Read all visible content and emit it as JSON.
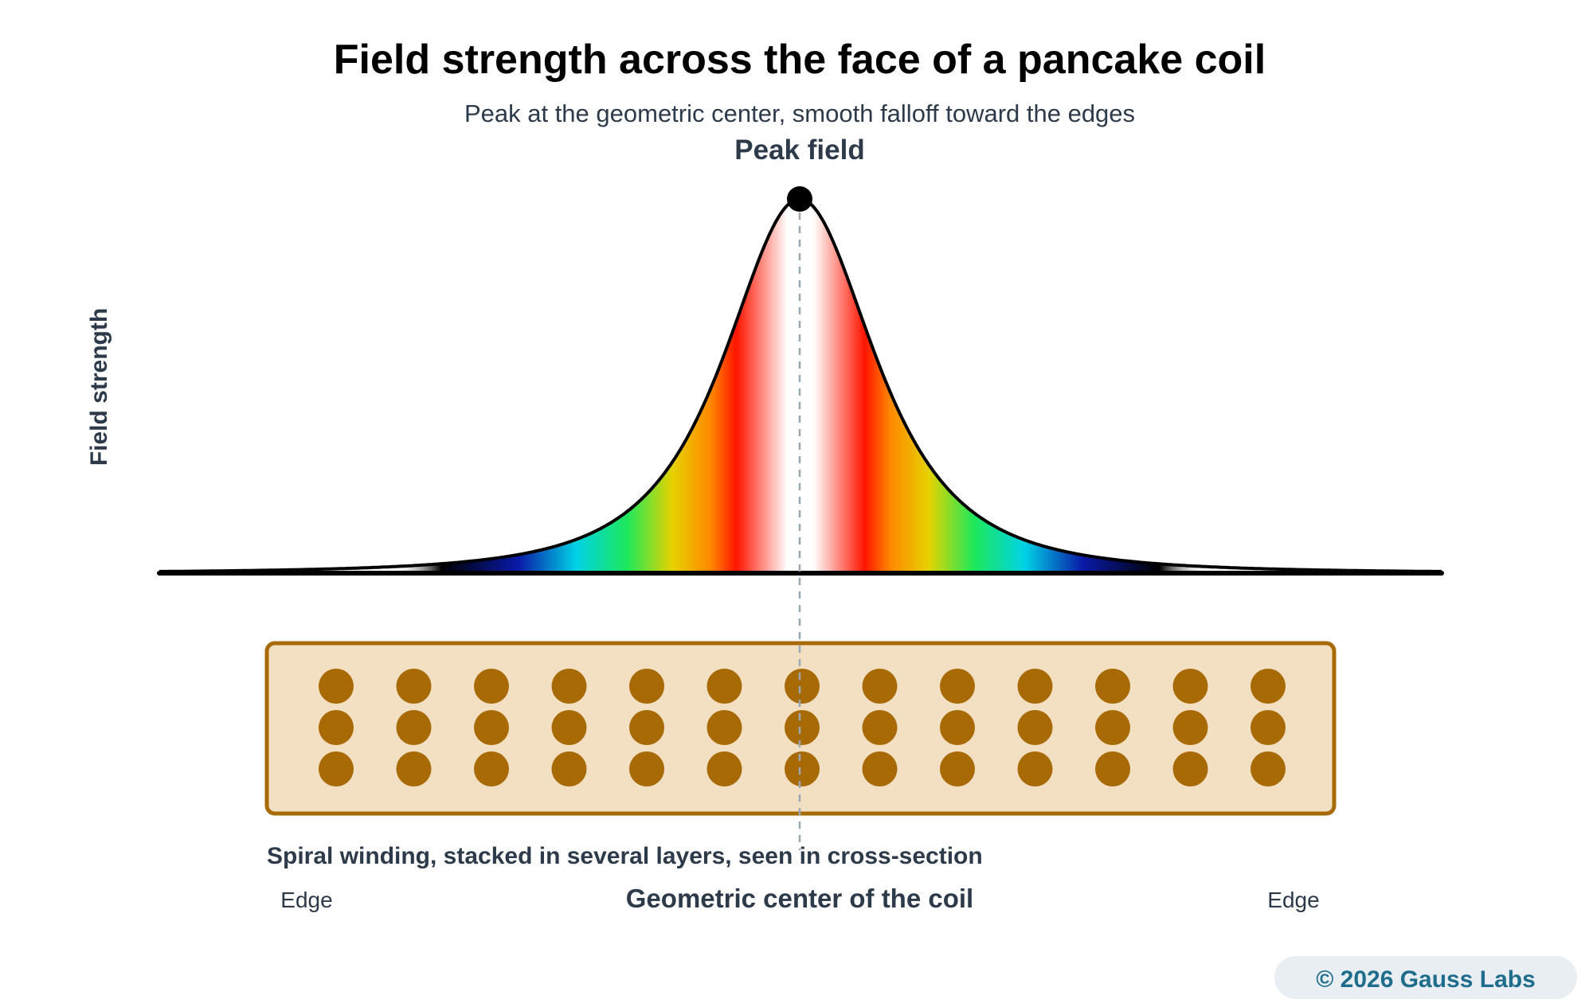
{
  "title": "Field strength across the face of a pancake coil",
  "subtitle": "Peak at the geometric center, smooth falloff toward the edges",
  "peak_label": "Peak field",
  "y_axis_label": "Field strength",
  "coil_caption": "Spiral winding, stacked in several layers, seen in cross-section",
  "center_label": "Geometric center of the coil",
  "left_edge_label": "Edge",
  "right_edge_label": "Edge",
  "copyright": "© 2026 Gauss Labs",
  "coil": {
    "columns": 13,
    "layers": 3
  },
  "colors": {
    "curve": "#000000",
    "winding": "#a86a05",
    "coil_fill": "#f3dfc1",
    "coil_border": "#a86a05",
    "center_line": "#9aa8b5",
    "copyright_bg": "#e9eef2",
    "gradient": [
      "#000000",
      "#0a1aa8",
      "#00d2e6",
      "#1ee85a",
      "#e6d200",
      "#ff1400",
      "#ffffff"
    ]
  }
}
